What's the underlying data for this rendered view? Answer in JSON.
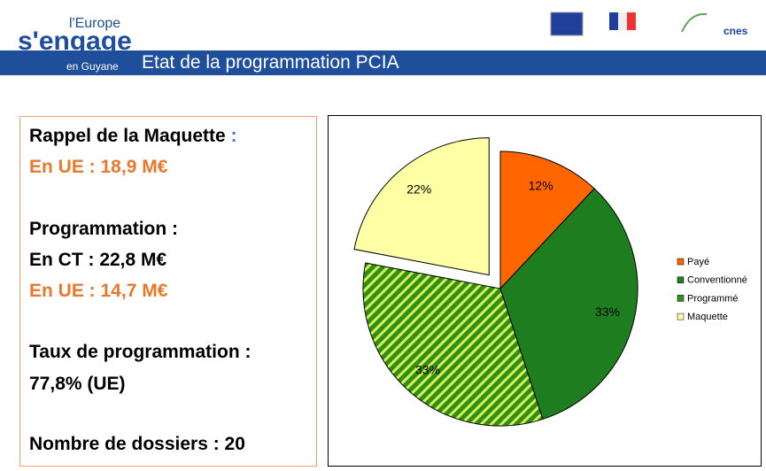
{
  "header": {
    "logo_top": "l'Europe",
    "logo_main": "s'engage",
    "logo_bottom": "en Guyane",
    "title": "Etat de la programmation PCIA",
    "cnes": "cnes"
  },
  "summary": {
    "line1": "Rappel de la Maquette",
    "line1_sep": ":",
    "line2": "En UE : 18,9 M€",
    "line3": "Programmation :",
    "line4": "En CT : 22,8 M€",
    "line5": "En UE : 14,7 M€",
    "line6": "Taux de programmation :",
    "line7": "77,8% (UE)",
    "line8": "Nombre de dossiers : 20"
  },
  "chart_data": {
    "type": "pie",
    "categories": [
      "Payé",
      "Conventionné",
      "Programmé",
      "Maquette"
    ],
    "values": [
      12,
      33,
      33,
      22
    ],
    "value_labels": [
      "12%",
      "33%",
      "33%",
      "22%"
    ],
    "colors": [
      "#ff6600",
      "#1e7d1e",
      "#2f8f1a",
      "#ffffa6"
    ],
    "hatched": [
      false,
      false,
      true,
      false
    ],
    "exploded": [
      false,
      false,
      false,
      true
    ],
    "legend": "right"
  }
}
